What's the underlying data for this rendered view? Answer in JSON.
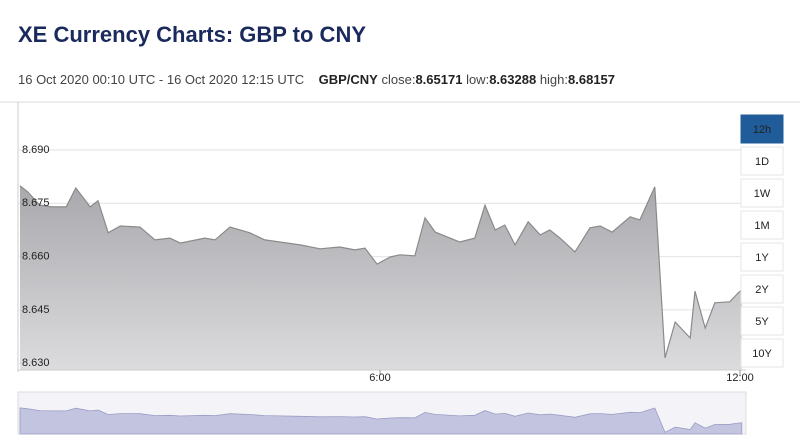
{
  "header": {
    "title": "XE Currency Charts: GBP to CNY"
  },
  "summary": {
    "period": "16 Oct 2020 00:10 UTC - 16 Oct 2020 12:15 UTC",
    "pair": "GBP/CNY",
    "close_label": "close:",
    "close": 8.65171,
    "low_label": "low:",
    "low": 8.63288,
    "high_label": "high:",
    "high": 8.68157
  },
  "controls": {
    "ranges": [
      "12h",
      "1D",
      "1W",
      "1M",
      "1Y",
      "2Y",
      "5Y",
      "10Y"
    ],
    "selected": 0,
    "selected_color": "#1f5c99"
  },
  "chart_data": {
    "type": "area",
    "x": [
      0,
      0.13,
      0.33,
      0.53,
      0.77,
      0.93,
      1.17,
      1.3,
      1.47,
      1.67,
      2.0,
      2.25,
      2.5,
      2.67,
      3.08,
      3.25,
      3.5,
      3.83,
      4.08,
      4.33,
      4.67,
      5.0,
      5.33,
      5.58,
      5.75,
      5.95,
      6.17,
      6.33,
      6.58,
      6.75,
      6.92,
      7.33,
      7.58,
      7.75,
      7.92,
      8.08,
      8.25,
      8.47,
      8.67,
      8.83,
      9.0,
      9.25,
      9.5,
      9.67,
      9.87,
      10.17,
      10.33,
      10.58,
      10.75,
      10.92,
      11.17,
      11.25,
      11.42,
      11.58,
      11.83,
      11.97,
      12.03
    ],
    "values": [
      8.6799,
      8.6782,
      8.6745,
      8.674,
      8.674,
      8.6793,
      8.674,
      8.6757,
      8.6667,
      8.6686,
      8.6683,
      8.6647,
      8.6652,
      8.6638,
      8.6652,
      8.6647,
      8.6683,
      8.6667,
      8.6647,
      8.6641,
      8.6633,
      8.6622,
      8.6627,
      8.6619,
      8.6624,
      8.6579,
      8.6599,
      8.6605,
      8.6602,
      8.6709,
      8.6669,
      8.6641,
      8.6652,
      8.6745,
      8.6675,
      8.6689,
      8.6633,
      8.6698,
      8.6661,
      8.6675,
      8.6652,
      8.6613,
      8.6681,
      8.6686,
      8.6669,
      8.6712,
      8.6703,
      8.6796,
      8.6315,
      8.6416,
      8.6371,
      8.6503,
      8.6399,
      8.647,
      8.6473,
      8.6498,
      8.6506
    ],
    "color": "#8a8a8a",
    "fill": "#c4c4c8",
    "navigator_fill": "#c3c5e0",
    "xlim": [
      0,
      12.1
    ],
    "ylim": [
      8.6281,
      8.7035
    ],
    "xticks": [
      {
        "value": 6,
        "label": "6:00"
      },
      {
        "value": 12,
        "label": "12:00"
      }
    ],
    "yticks": [
      {
        "value": 8.63,
        "label": "8.630"
      },
      {
        "value": 8.645,
        "label": "8.645"
      },
      {
        "value": 8.66,
        "label": "8.660"
      },
      {
        "value": 8.675,
        "label": "8.675"
      },
      {
        "value": 8.69,
        "label": "8.690"
      }
    ],
    "grid": true
  }
}
